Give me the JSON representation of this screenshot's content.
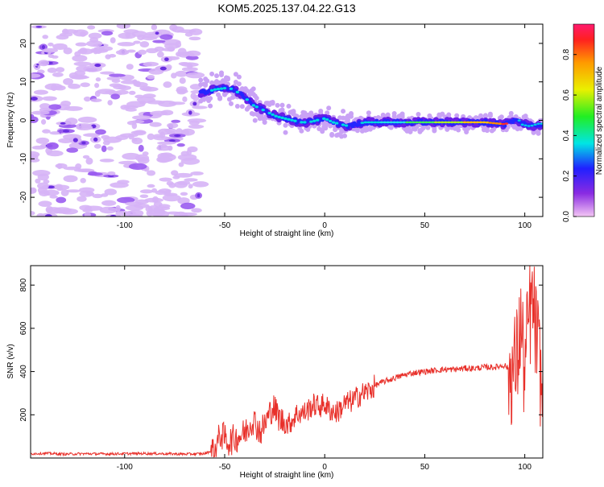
{
  "chart_data": [
    {
      "type": "heatmap",
      "title": "KOM5.2025.137.04.22.G13",
      "xlabel": "Height of straight line (km)",
      "ylabel": "Frequency (Hz)",
      "xlim": [
        -147,
        109
      ],
      "ylim": [
        -25,
        25
      ],
      "xticks": [
        "-100",
        "-50",
        "0",
        "50",
        "100"
      ],
      "xtick_values": [
        -100,
        -50,
        0,
        50,
        100
      ],
      "yticks": [
        "20",
        "10",
        "0",
        "-10",
        "-20"
      ],
      "ytick_values": [
        20,
        10,
        0,
        -10,
        -20
      ],
      "colorbar": {
        "label": "Normalized spectral amplitude",
        "range": [
          0,
          0.95
        ],
        "ticks": [
          "0.0",
          "0.2",
          "0.4",
          "0.6",
          "0.8"
        ],
        "tick_values": [
          0.0,
          0.2,
          0.4,
          0.6,
          0.8
        ]
      },
      "ridge": {
        "x": [
          -62,
          -55,
          -48,
          -44,
          -40,
          -36,
          -32,
          -28,
          -24,
          -20,
          -16,
          -12,
          -8,
          -4,
          0,
          4,
          8,
          12,
          16,
          20,
          30,
          40,
          50,
          60,
          70,
          80,
          90,
          95,
          100,
          105,
          109
        ],
        "y": [
          7,
          8,
          8.5,
          7.5,
          6,
          4,
          3,
          2,
          1,
          0.5,
          0,
          -0.5,
          -0.5,
          0,
          0.5,
          -0.5,
          -1,
          -1.5,
          -1,
          -0.5,
          -0.5,
          -0.5,
          -0.5,
          -0.5,
          -0.5,
          -0.5,
          -1,
          0,
          -1,
          -1.5,
          -1
        ]
      }
    },
    {
      "type": "line",
      "title": "",
      "xlabel": "Height of straight line (km)",
      "ylabel": "SNR (v/v)",
      "xlim": [
        -147,
        109
      ],
      "ylim": [
        0,
        890
      ],
      "xticks": [
        "-100",
        "-50",
        "0",
        "50",
        "100"
      ],
      "xtick_values": [
        -100,
        -50,
        0,
        50,
        100
      ],
      "yticks": [
        "200",
        "400",
        "600",
        "800"
      ],
      "ytick_values": [
        200,
        400,
        600,
        800
      ],
      "series": [
        {
          "color": "#e8302a",
          "x": [
            -147,
            -140,
            -130,
            -120,
            -110,
            -100,
            -90,
            -80,
            -70,
            -60,
            -55,
            -52,
            -48,
            -44,
            -40,
            -36,
            -32,
            -28,
            -26,
            -22,
            -18,
            -14,
            -10,
            -6,
            -2,
            0,
            2,
            6,
            10,
            14,
            18,
            22,
            26,
            30,
            35,
            40,
            45,
            50,
            55,
            60,
            65,
            70,
            75,
            80,
            85,
            90,
            92,
            94,
            96,
            98,
            100,
            102,
            104,
            106,
            108,
            109
          ],
          "y": [
            20,
            22,
            18,
            20,
            19,
            20,
            21,
            20,
            18,
            20,
            40,
            110,
            75,
            95,
            115,
            180,
            120,
            195,
            240,
            175,
            155,
            205,
            210,
            245,
            240,
            250,
            225,
            210,
            250,
            265,
            295,
            310,
            340,
            355,
            370,
            385,
            395,
            400,
            405,
            410,
            410,
            415,
            415,
            420,
            420,
            430,
            410,
            400,
            450,
            620,
            380,
            650,
            700,
            550,
            380,
            200
          ]
        }
      ]
    }
  ]
}
